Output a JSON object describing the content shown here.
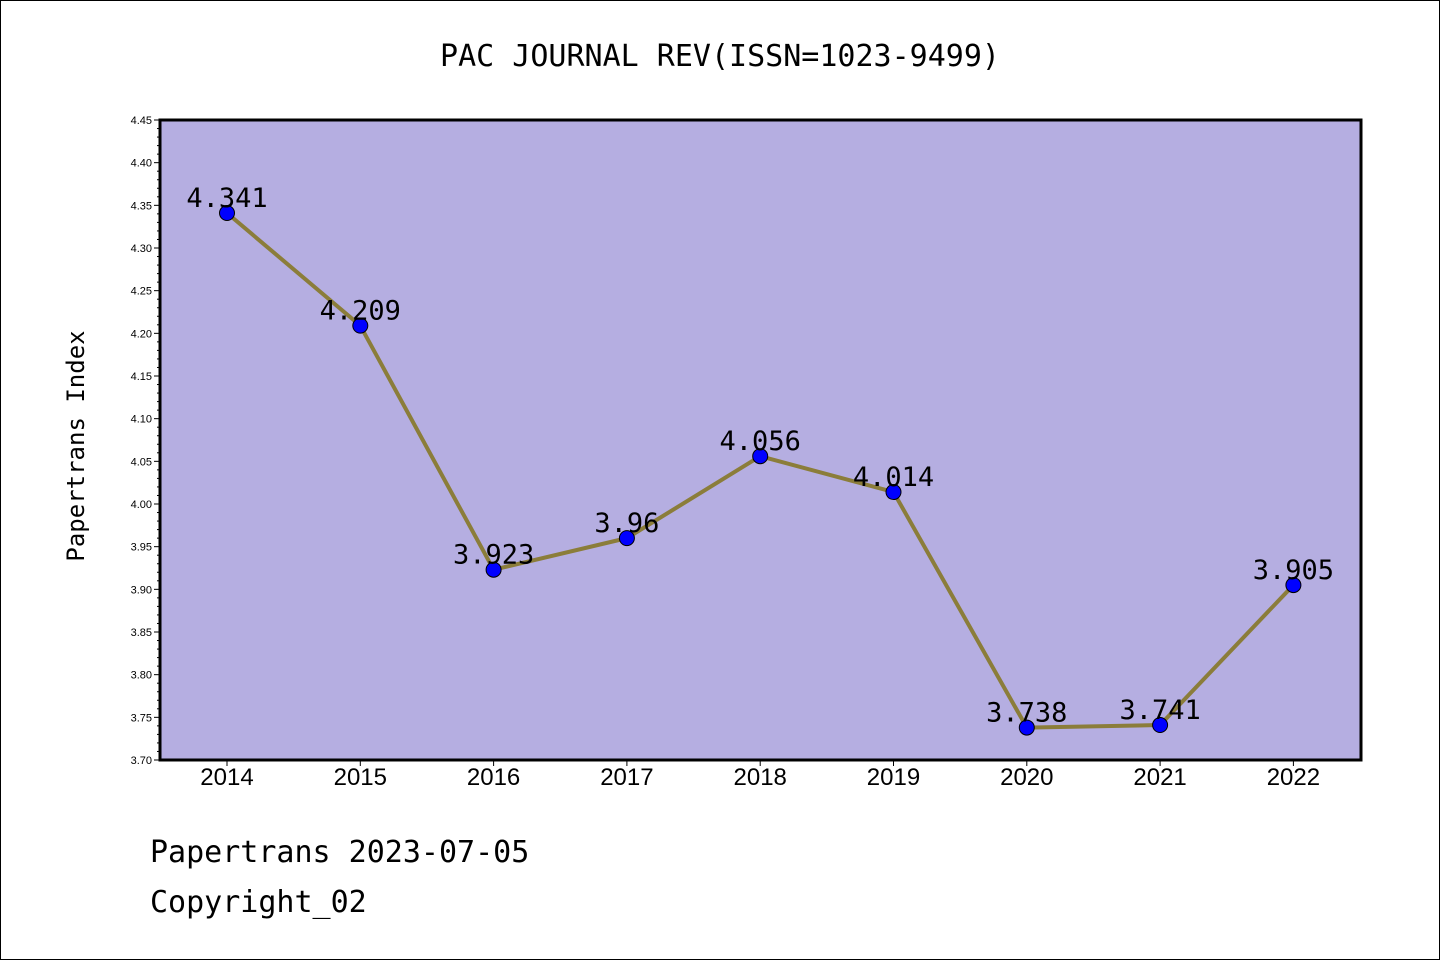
{
  "chart_data": {
    "type": "line",
    "title": "PAC JOURNAL REV(ISSN=1023-9499)",
    "xlabel": "",
    "ylabel": "Papertrans Index",
    "categories": [
      "2014",
      "2015",
      "2016",
      "2017",
      "2018",
      "2019",
      "2020",
      "2021",
      "2022"
    ],
    "values": [
      4.341,
      4.209,
      3.923,
      3.96,
      4.056,
      4.014,
      3.738,
      3.741,
      3.905
    ],
    "data_labels": [
      "4.341",
      "4.209",
      "3.923",
      "3.96",
      "4.056",
      "4.014",
      "3.738",
      "3.741",
      "3.905"
    ],
    "ylim": [
      3.7,
      4.45
    ],
    "yticks": [
      "3.70",
      "3.75",
      "3.80",
      "3.85",
      "3.90",
      "3.95",
      "4.00",
      "4.05",
      "4.10",
      "4.15",
      "4.20",
      "4.25",
      "4.30",
      "4.35",
      "4.40",
      "4.45"
    ],
    "grid": false,
    "colors": {
      "plot_background": "#b5aee1",
      "line": "#8b7d3a",
      "marker": "#0000ff"
    }
  },
  "footer": {
    "line1": "Papertrans 2023-07-05",
    "line2": "Copyright_02"
  }
}
